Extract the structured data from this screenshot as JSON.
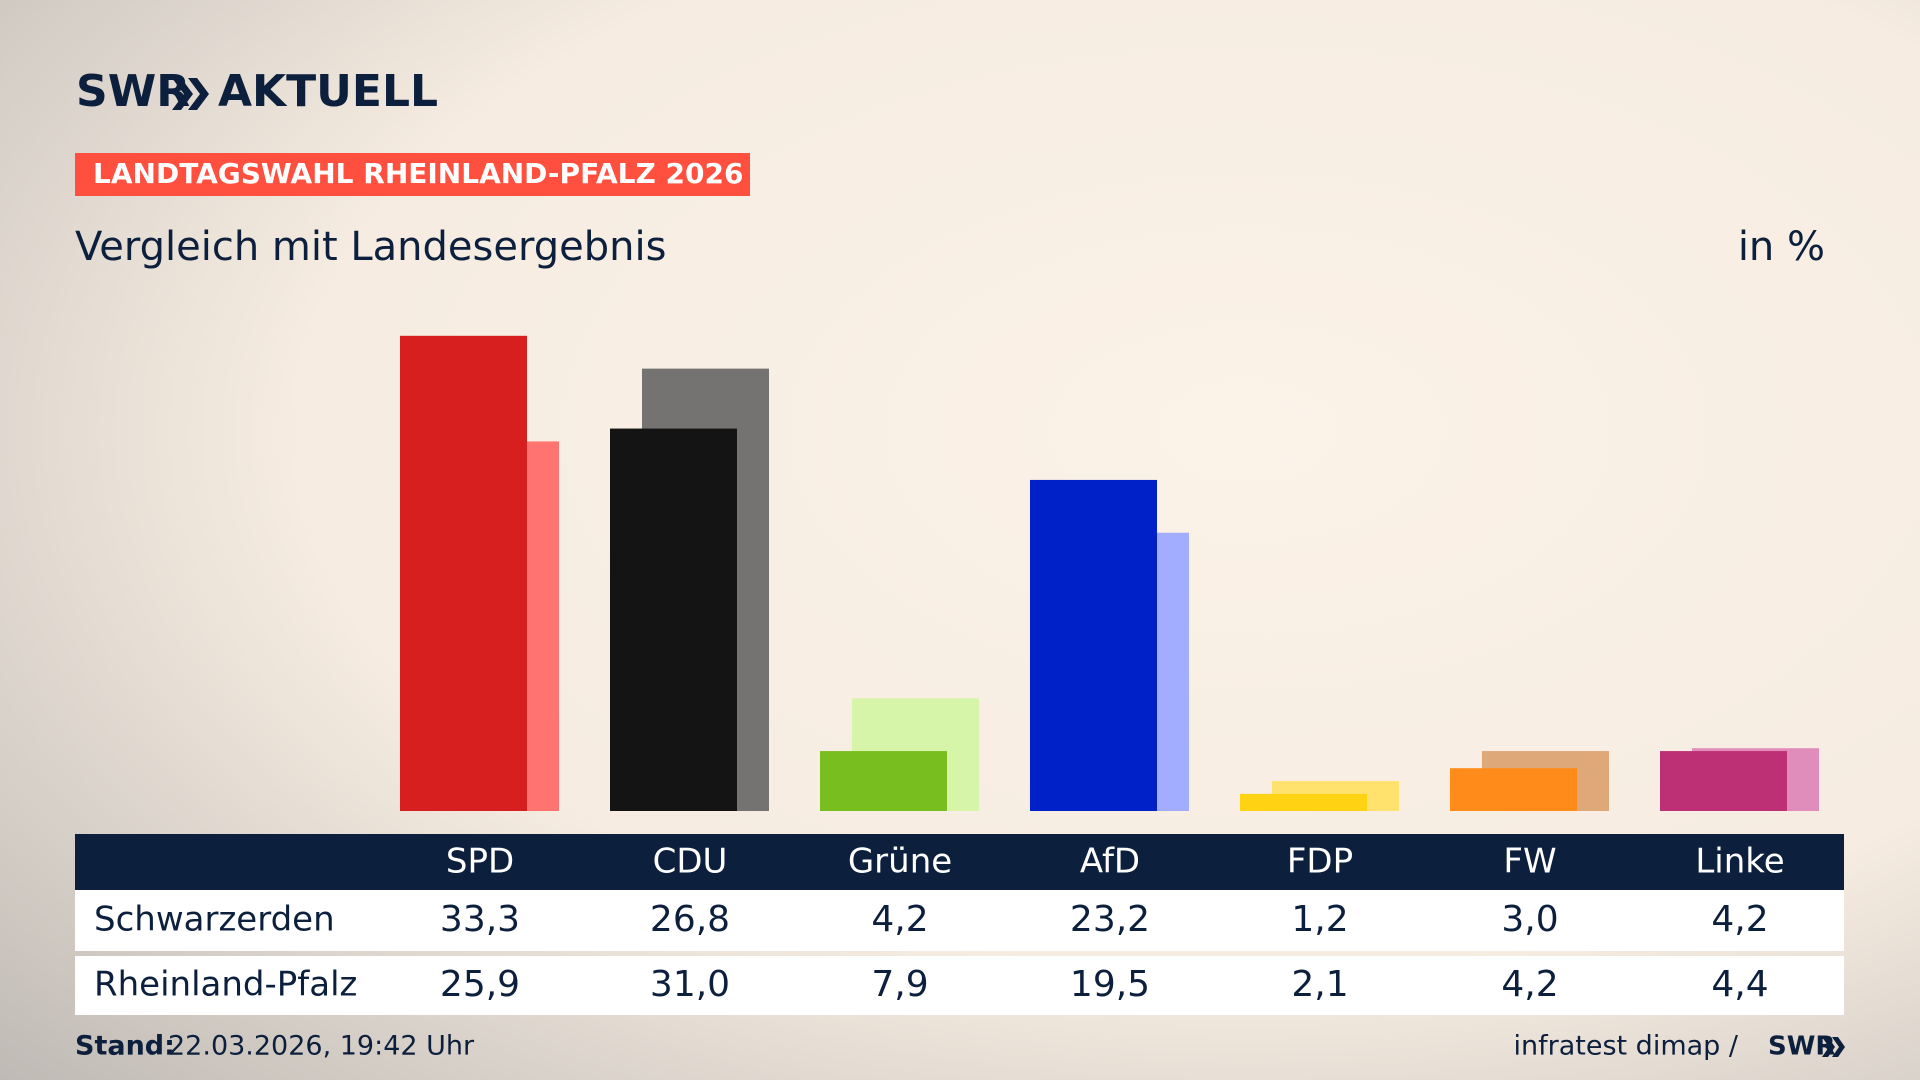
{
  "header": {
    "brand": "SWR",
    "brand_product": "AKTUELL",
    "tag": "LANDTAGSWAHL RHEINLAND-PFALZ 2026"
  },
  "chart_data": {
    "type": "bar",
    "title": "Vergleich mit Landesergebnis",
    "unit_label": "in %",
    "categories": [
      "SPD",
      "CDU",
      "Grüne",
      "AfD",
      "FDP",
      "FW",
      "Linke"
    ],
    "series": [
      {
        "name": "Schwarzerden",
        "values": [
          33.3,
          26.8,
          4.2,
          23.2,
          1.2,
          3.0,
          4.2
        ],
        "value_labels": [
          "33,3",
          "26,8",
          "4,2",
          "23,2",
          "1,2",
          "3,0",
          "4,2"
        ],
        "colors": [
          "#d71f1f",
          "#141414",
          "#78be1e",
          "#0021c7",
          "#ffd314",
          "#ff8c1a",
          "#be3075"
        ]
      },
      {
        "name": "Rheinland-Pfalz",
        "values": [
          25.9,
          31.0,
          7.9,
          19.5,
          2.1,
          4.2,
          4.4
        ],
        "value_labels": [
          "25,9",
          "31,0",
          "7,9",
          "19,5",
          "2,1",
          "4,2",
          "4,4"
        ],
        "colors": [
          "#ff7370",
          "#747372",
          "#d6f5a8",
          "#a2adff",
          "#ffe26e",
          "#dfa878",
          "#e08dbb"
        ]
      }
    ]
  },
  "footer": {
    "stand_label": "Stand:",
    "stand": "22.03.2026, 19:42 Uhr",
    "source": "infratest dimap /",
    "source_brand": "SWR"
  }
}
